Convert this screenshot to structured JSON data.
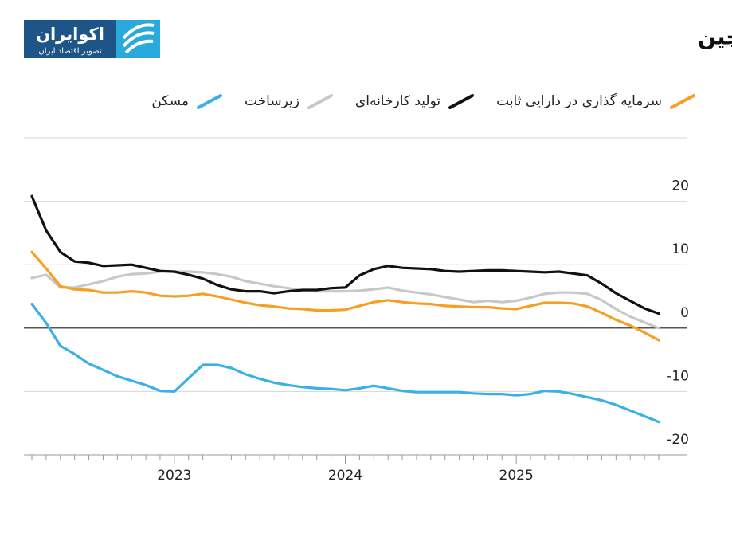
{
  "logo": {
    "title": "اکوایران",
    "subtitle": "تصویر اقتصاد ایران"
  },
  "chart_data": {
    "type": "line",
    "title": "کاهش بی‌سابقه رشد سرمایه‌گذاری در چین",
    "categories": [
      null,
      null,
      null,
      null,
      null,
      null,
      null,
      null,
      null,
      null,
      "2023",
      null,
      null,
      null,
      null,
      null,
      null,
      null,
      null,
      null,
      null,
      null,
      "2024",
      null,
      null,
      null,
      null,
      null,
      null,
      null,
      null,
      null,
      null,
      null,
      "2025",
      null,
      null,
      null,
      null,
      null,
      null,
      null,
      null,
      null,
      null
    ],
    "series": [
      {
        "name": "سرمایه گذاری در دارایی ثابت",
        "color": "#f5a024",
        "values": [
          12,
          9.4,
          6.6,
          6.1,
          6,
          5.6,
          5.6,
          5.8,
          5.6,
          5.1,
          5,
          5.1,
          5.4,
          5,
          4.5,
          4,
          3.6,
          3.4,
          3.1,
          3,
          2.8,
          2.8,
          2.9,
          3.5,
          4.1,
          4.4,
          4.1,
          3.9,
          3.8,
          3.5,
          3.4,
          3.3,
          3.3,
          3.1,
          3,
          3.5,
          4,
          4,
          3.9,
          3.4,
          2.4,
          1.3,
          0.4,
          -0.7,
          -1.9
        ]
      },
      {
        "name": "تولید کارخانه‌ای",
        "color": "#111111",
        "values": [
          20.8,
          15.4,
          12,
          10.5,
          10.3,
          9.8,
          9.9,
          10,
          9.5,
          9,
          8.9,
          8.4,
          7.8,
          6.8,
          6.1,
          5.8,
          5.8,
          5.5,
          5.8,
          6,
          6,
          6.3,
          6.4,
          8.3,
          9.3,
          9.8,
          9.5,
          9.4,
          9.3,
          9,
          8.9,
          9,
          9.1,
          9.1,
          9,
          8.9,
          8.8,
          8.9,
          8.6,
          8.3,
          7,
          5.5,
          4.3,
          3.1,
          2.3
        ]
      },
      {
        "name": "زیرساخت",
        "color": "#c8c8c8",
        "values": [
          7.9,
          8.4,
          6.4,
          6.4,
          6.9,
          7.4,
          8.1,
          8.5,
          8.6,
          8.9,
          8.9,
          8.9,
          8.8,
          8.5,
          8.1,
          7.4,
          7,
          6.6,
          6.3,
          5.9,
          5.8,
          5.8,
          5.8,
          5.9,
          6.1,
          6.4,
          5.9,
          5.6,
          5.3,
          4.9,
          4.5,
          4.1,
          4.3,
          4.1,
          4.3,
          4.8,
          5.4,
          5.6,
          5.6,
          5.4,
          4.4,
          3,
          1.8,
          0.9,
          0
        ]
      },
      {
        "name": "مسکن",
        "color": "#3bb0e6",
        "values": [
          3.8,
          0.8,
          -2.8,
          -4.1,
          -5.6,
          -6.6,
          -7.6,
          -8.3,
          -9,
          -9.9,
          -10,
          -7.9,
          -5.8,
          -5.8,
          -6.3,
          -7.3,
          -8,
          -8.6,
          -9,
          -9.3,
          -9.5,
          -9.6,
          -9.8,
          -9.5,
          -9.1,
          -9.5,
          -9.9,
          -10.1,
          -10.1,
          -10.1,
          -10.1,
          -10.3,
          -10.4,
          -10.4,
          -10.6,
          -10.4,
          -9.9,
          -10,
          -10.4,
          -10.9,
          -11.4,
          -12.1,
          -13,
          -13.9,
          -14.8
        ]
      }
    ],
    "ylim": [
      -20,
      30
    ],
    "yticks": [
      -20,
      -10,
      0,
      10,
      20
    ],
    "grid": true
  }
}
